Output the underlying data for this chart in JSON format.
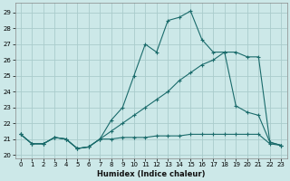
{
  "xlabel": "Humidex (Indice chaleur)",
  "bg_color": "#cce8e8",
  "grid_color": "#aacccc",
  "line_color": "#1a6b6b",
  "xlim": [
    -0.5,
    23.5
  ],
  "ylim": [
    19.8,
    29.6
  ],
  "xticks": [
    0,
    1,
    2,
    3,
    4,
    5,
    6,
    7,
    8,
    9,
    10,
    11,
    12,
    13,
    14,
    15,
    16,
    17,
    18,
    19,
    20,
    21,
    22,
    23
  ],
  "yticks": [
    20,
    21,
    22,
    23,
    24,
    25,
    26,
    27,
    28,
    29
  ],
  "line1_x": [
    0,
    1,
    2,
    3,
    4,
    5,
    6,
    7,
    8,
    9,
    10,
    11,
    12,
    13,
    14,
    15,
    16,
    17,
    18,
    19,
    20,
    21,
    22,
    23
  ],
  "line1_y": [
    21.3,
    20.7,
    20.7,
    21.1,
    21.0,
    20.4,
    20.5,
    21.0,
    21.0,
    21.1,
    21.1,
    21.1,
    21.2,
    21.2,
    21.2,
    21.3,
    21.3,
    21.3,
    21.3,
    21.3,
    21.3,
    21.3,
    20.7,
    20.6
  ],
  "line2_x": [
    0,
    1,
    2,
    3,
    4,
    5,
    6,
    7,
    8,
    9,
    10,
    11,
    12,
    13,
    14,
    15,
    16,
    17,
    18,
    19,
    20,
    21,
    22,
    23
  ],
  "line2_y": [
    21.3,
    20.7,
    20.7,
    21.1,
    21.0,
    20.4,
    20.5,
    21.0,
    22.2,
    23.0,
    25.0,
    27.0,
    26.5,
    28.5,
    28.7,
    29.1,
    27.3,
    26.5,
    26.5,
    26.5,
    26.2,
    26.2,
    20.8,
    20.6
  ],
  "line3_x": [
    0,
    1,
    2,
    3,
    4,
    5,
    6,
    7,
    8,
    9,
    10,
    11,
    12,
    13,
    14,
    15,
    16,
    17,
    18,
    19,
    20,
    21,
    22,
    23
  ],
  "line3_y": [
    21.3,
    20.7,
    20.7,
    21.1,
    21.0,
    20.4,
    20.5,
    21.0,
    21.5,
    22.0,
    22.5,
    23.0,
    23.5,
    24.0,
    24.7,
    25.2,
    25.7,
    26.0,
    26.5,
    23.1,
    22.7,
    22.5,
    20.8,
    20.6
  ]
}
